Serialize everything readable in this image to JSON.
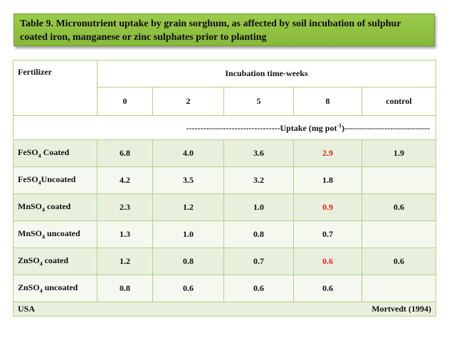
{
  "title": "Table 9. Micronutrient uptake by grain sorghum, as affected by soil incubation of sulphur coated iron, manganese or zinc sulphates prior to planting",
  "header": {
    "fertilizer": "Fertilizer",
    "incubation": "Incubation time-weeks",
    "columns": [
      "0",
      "2",
      "5",
      "8",
      "control"
    ],
    "uptake_left": "---------------------------------Uptake (mg pot",
    "uptake_sup": "-1",
    "uptake_right": ")------------------------------"
  },
  "rows": [
    {
      "pre": "FeSO",
      "sub": "4",
      "post": " Coated",
      "values": [
        "6.8",
        "4.0",
        "3.6",
        "2.9",
        "1.9"
      ]
    },
    {
      "pre": "FeSO",
      "sub": "4",
      "post": "Uncoated",
      "values": [
        "4.2",
        "3.5",
        "3.2",
        "1.8",
        ""
      ]
    },
    {
      "pre": "MnSO",
      "sub": "4",
      "post": " coated",
      "values": [
        "2.3",
        "1.2",
        "1.0",
        "0.9",
        "0.6"
      ]
    },
    {
      "pre": "MnSO",
      "sub": "4",
      "post": " uncoated",
      "values": [
        "1.3",
        "1.0",
        "0.8",
        "0.7",
        ""
      ]
    },
    {
      "pre": "ZnSO",
      "sub": "4",
      "post": " coated",
      "values": [
        "1.2",
        "0.8",
        "0.7",
        "0.6",
        "0.6"
      ]
    },
    {
      "pre": "ZnSO",
      "sub": "4",
      "post": " uncoated",
      "values": [
        "0.8",
        "0.6",
        "0.6",
        "0.6",
        ""
      ]
    }
  ],
  "highlight_color": "#e02020",
  "footer": {
    "left": "USA",
    "right": "Mortvedt (1994)"
  }
}
